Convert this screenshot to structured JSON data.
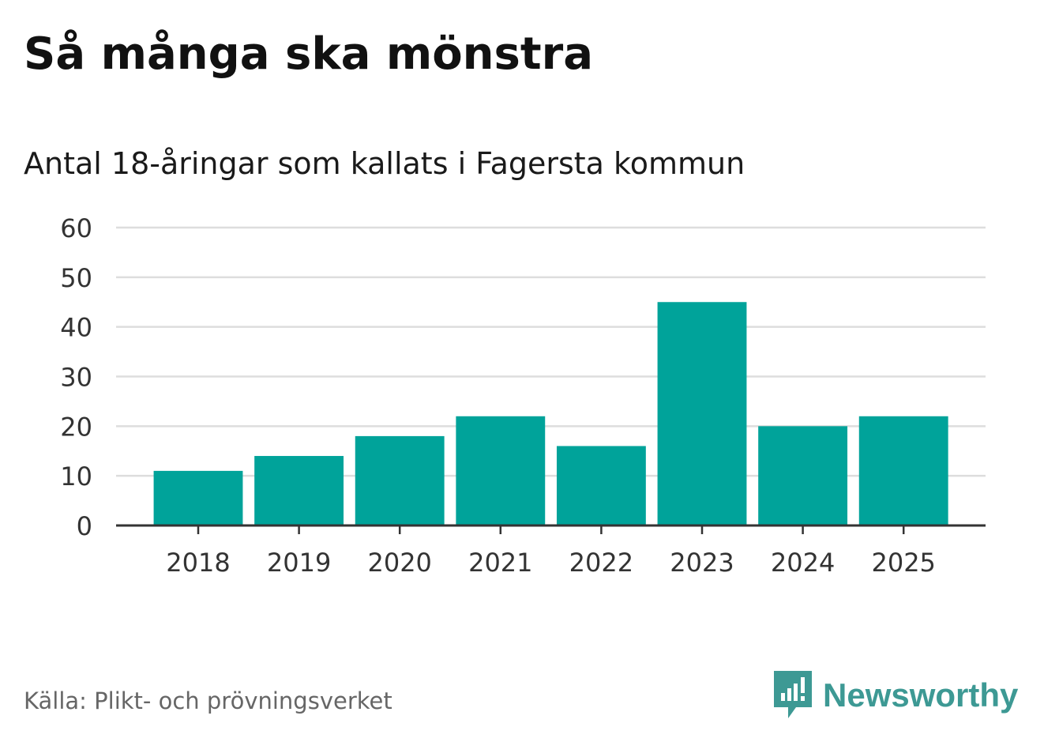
{
  "header": {
    "title": "Så många ska mönstra",
    "subtitle": "Antal 18-åringar som kallats i Fagersta kommun"
  },
  "footer": {
    "source": "Källa: Plikt- och prövningsverket",
    "brand": "Newsworthy",
    "brand_icon": "newsworthy-logo-icon",
    "brand_color": "#3d9994"
  },
  "chart_data": {
    "type": "bar",
    "categories": [
      "2018",
      "2019",
      "2020",
      "2021",
      "2022",
      "2023",
      "2024",
      "2025"
    ],
    "values": [
      11,
      14,
      18,
      22,
      16,
      45,
      20,
      22
    ],
    "yticks": [
      "0",
      "10",
      "20",
      "30",
      "40",
      "50",
      "60"
    ],
    "ylim": [
      0,
      60
    ],
    "grid": true,
    "bar_color": "#00a39a",
    "grid_color": "#dddddd",
    "axis_color": "#333333"
  }
}
